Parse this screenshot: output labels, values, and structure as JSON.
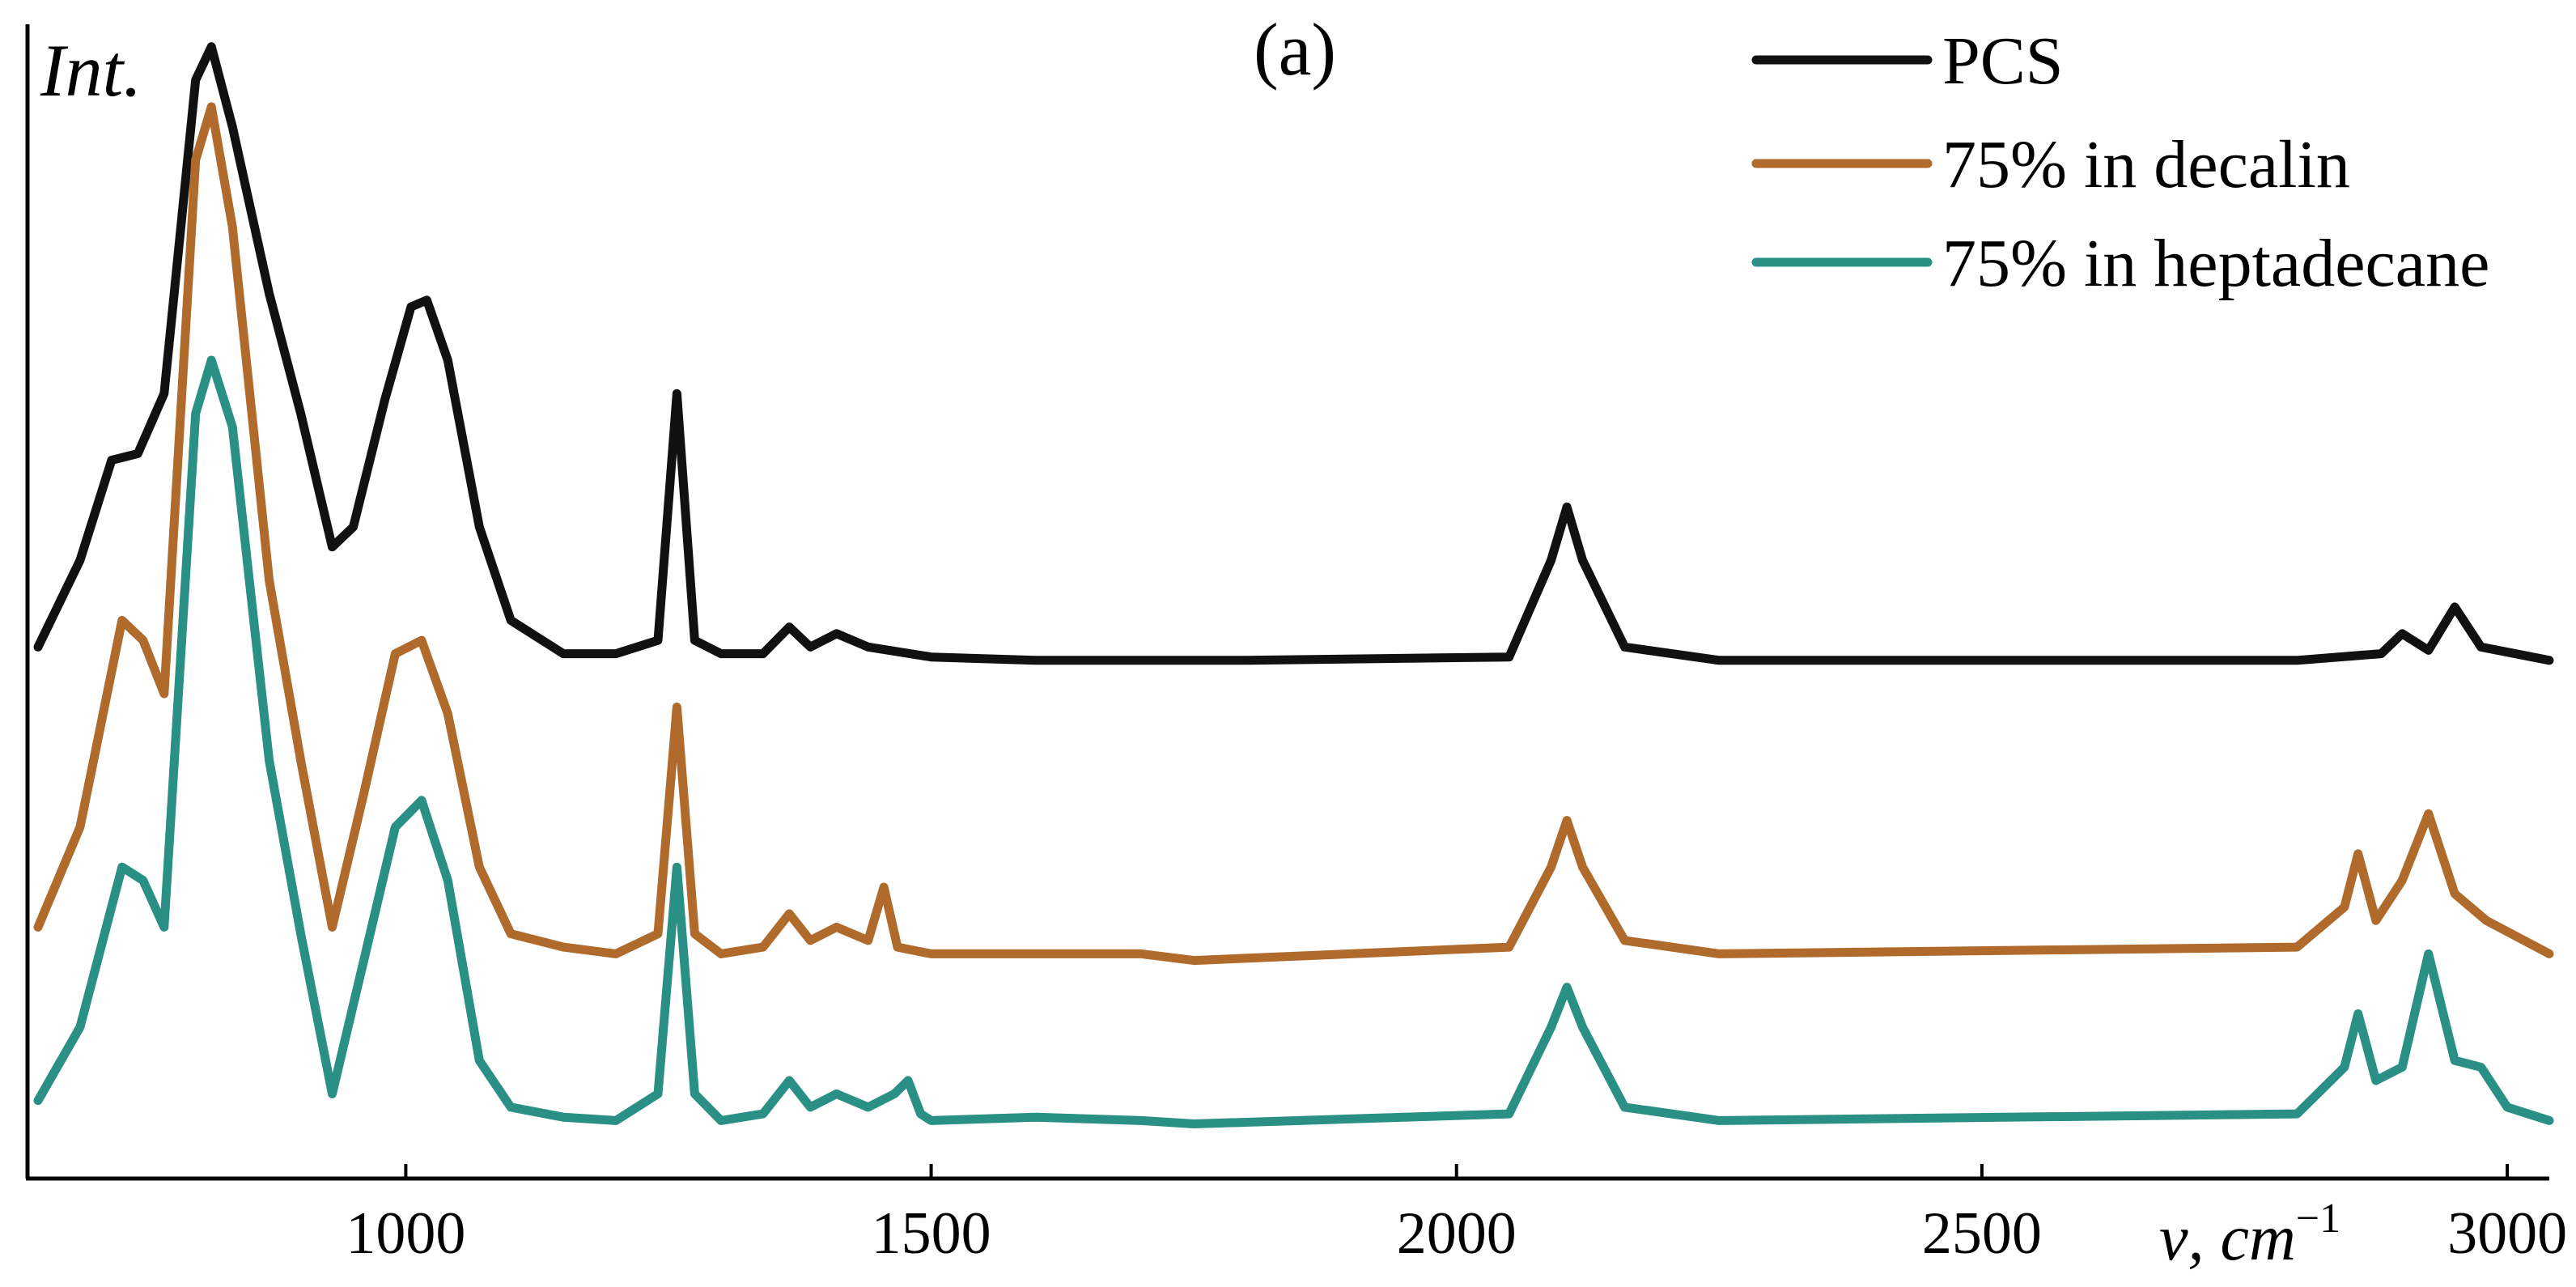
{
  "chart_data": {
    "type": "line",
    "panel_label": "(a)",
    "ylabel": "Int.",
    "xlabel": "ν, cm",
    "xlabel_superscript": "−1",
    "xlim": [
      640,
      3040
    ],
    "x_ticks": [
      1000,
      1500,
      2000,
      2500,
      3000
    ],
    "x_tick_labels": [
      "1000",
      "1500",
      "2000",
      "2500",
      "3000"
    ],
    "y_tick_labels": false,
    "grid": false,
    "legend_position": "top-right",
    "series": [
      {
        "name": "PCS",
        "color": "#111111",
        "points": [
          [
            650,
            0.07
          ],
          [
            690,
            0.2
          ],
          [
            720,
            0.35
          ],
          [
            745,
            0.36
          ],
          [
            770,
            0.45
          ],
          [
            800,
            0.92
          ],
          [
            815,
            0.97
          ],
          [
            835,
            0.85
          ],
          [
            870,
            0.6
          ],
          [
            900,
            0.42
          ],
          [
            930,
            0.22
          ],
          [
            950,
            0.25
          ],
          [
            980,
            0.44
          ],
          [
            1005,
            0.58
          ],
          [
            1020,
            0.59
          ],
          [
            1040,
            0.5
          ],
          [
            1070,
            0.25
          ],
          [
            1100,
            0.11
          ],
          [
            1150,
            0.06
          ],
          [
            1200,
            0.06
          ],
          [
            1240,
            0.08
          ],
          [
            1258,
            0.45
          ],
          [
            1275,
            0.08
          ],
          [
            1300,
            0.06
          ],
          [
            1340,
            0.06
          ],
          [
            1365,
            0.1
          ],
          [
            1385,
            0.07
          ],
          [
            1410,
            0.09
          ],
          [
            1440,
            0.07
          ],
          [
            1500,
            0.055
          ],
          [
            1600,
            0.05
          ],
          [
            1800,
            0.05
          ],
          [
            2050,
            0.055
          ],
          [
            2090,
            0.2
          ],
          [
            2105,
            0.28
          ],
          [
            2120,
            0.2
          ],
          [
            2160,
            0.07
          ],
          [
            2250,
            0.05
          ],
          [
            2800,
            0.05
          ],
          [
            2880,
            0.06
          ],
          [
            2900,
            0.09
          ],
          [
            2925,
            0.065
          ],
          [
            2950,
            0.13
          ],
          [
            2975,
            0.07
          ],
          [
            3040,
            0.05
          ]
        ]
      },
      {
        "name": "75% in decalin",
        "color": "#b06a2c",
        "points": [
          [
            650,
            -0.35
          ],
          [
            690,
            -0.2
          ],
          [
            730,
            0.11
          ],
          [
            750,
            0.08
          ],
          [
            770,
            0.0
          ],
          [
            800,
            0.8
          ],
          [
            815,
            0.88
          ],
          [
            835,
            0.7
          ],
          [
            870,
            0.17
          ],
          [
            900,
            -0.1
          ],
          [
            930,
            -0.35
          ],
          [
            960,
            -0.15
          ],
          [
            990,
            0.06
          ],
          [
            1015,
            0.08
          ],
          [
            1040,
            -0.03
          ],
          [
            1070,
            -0.26
          ],
          [
            1100,
            -0.36
          ],
          [
            1150,
            -0.38
          ],
          [
            1200,
            -0.39
          ],
          [
            1240,
            -0.36
          ],
          [
            1258,
            -0.02
          ],
          [
            1275,
            -0.36
          ],
          [
            1300,
            -0.39
          ],
          [
            1340,
            -0.38
          ],
          [
            1365,
            -0.33
          ],
          [
            1385,
            -0.37
          ],
          [
            1410,
            -0.35
          ],
          [
            1440,
            -0.37
          ],
          [
            1455,
            -0.29
          ],
          [
            1468,
            -0.38
          ],
          [
            1500,
            -0.39
          ],
          [
            1600,
            -0.39
          ],
          [
            1700,
            -0.39
          ],
          [
            1750,
            -0.4
          ],
          [
            2050,
            -0.38
          ],
          [
            2090,
            -0.26
          ],
          [
            2105,
            -0.19
          ],
          [
            2120,
            -0.26
          ],
          [
            2160,
            -0.37
          ],
          [
            2250,
            -0.39
          ],
          [
            2800,
            -0.38
          ],
          [
            2845,
            -0.32
          ],
          [
            2858,
            -0.24
          ],
          [
            2875,
            -0.34
          ],
          [
            2900,
            -0.28
          ],
          [
            2925,
            -0.18
          ],
          [
            2950,
            -0.3
          ],
          [
            2980,
            -0.34
          ],
          [
            3040,
            -0.39
          ]
        ]
      },
      {
        "name": "75% in heptadecane",
        "color": "#2a8f84",
        "points": [
          [
            650,
            -0.61
          ],
          [
            690,
            -0.5
          ],
          [
            730,
            -0.26
          ],
          [
            750,
            -0.28
          ],
          [
            770,
            -0.35
          ],
          [
            800,
            0.42
          ],
          [
            815,
            0.5
          ],
          [
            835,
            0.4
          ],
          [
            870,
            -0.1
          ],
          [
            900,
            -0.36
          ],
          [
            930,
            -0.6
          ],
          [
            960,
            -0.4
          ],
          [
            990,
            -0.2
          ],
          [
            1015,
            -0.16
          ],
          [
            1040,
            -0.28
          ],
          [
            1070,
            -0.55
          ],
          [
            1100,
            -0.62
          ],
          [
            1150,
            -0.635
          ],
          [
            1200,
            -0.64
          ],
          [
            1240,
            -0.6
          ],
          [
            1258,
            -0.26
          ],
          [
            1275,
            -0.6
          ],
          [
            1300,
            -0.64
          ],
          [
            1340,
            -0.63
          ],
          [
            1365,
            -0.58
          ],
          [
            1385,
            -0.62
          ],
          [
            1410,
            -0.6
          ],
          [
            1440,
            -0.62
          ],
          [
            1465,
            -0.6
          ],
          [
            1478,
            -0.58
          ],
          [
            1490,
            -0.63
          ],
          [
            1500,
            -0.64
          ],
          [
            1600,
            -0.635
          ],
          [
            1700,
            -0.64
          ],
          [
            1750,
            -0.645
          ],
          [
            2050,
            -0.63
          ],
          [
            2090,
            -0.5
          ],
          [
            2105,
            -0.44
          ],
          [
            2120,
            -0.5
          ],
          [
            2160,
            -0.62
          ],
          [
            2250,
            -0.64
          ],
          [
            2800,
            -0.63
          ],
          [
            2845,
            -0.56
          ],
          [
            2858,
            -0.48
          ],
          [
            2875,
            -0.58
          ],
          [
            2900,
            -0.56
          ],
          [
            2925,
            -0.39
          ],
          [
            2950,
            -0.55
          ],
          [
            2975,
            -0.56
          ],
          [
            3000,
            -0.62
          ],
          [
            3040,
            -0.64
          ]
        ]
      }
    ]
  }
}
